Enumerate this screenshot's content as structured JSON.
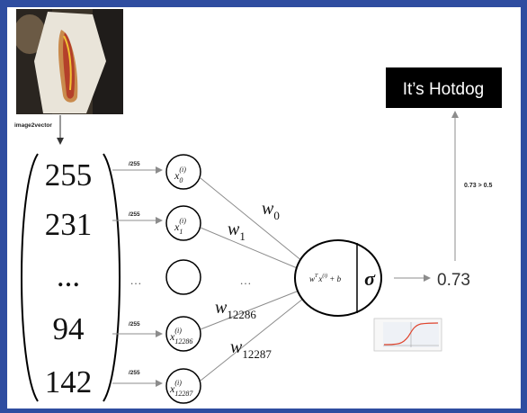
{
  "image_label": "image2vector",
  "pixel_values": [
    "255",
    "231",
    "...",
    "94",
    "142"
  ],
  "scale_labels": [
    "/255",
    "/255",
    "/255",
    "/255"
  ],
  "ellipsis": "…",
  "inputs": [
    {
      "base": "x",
      "sup": "(i)",
      "sub": "0"
    },
    {
      "base": "x",
      "sup": "(i)",
      "sub": "1"
    },
    {
      "base": "",
      "sup": "",
      "sub": ""
    },
    {
      "base": "x",
      "sup": "(i)",
      "sub": "12286"
    },
    {
      "base": "x",
      "sup": "(i)",
      "sub": "12287"
    }
  ],
  "weights": [
    {
      "base": "w",
      "sub": "0"
    },
    {
      "base": "w",
      "sub": "1"
    },
    {
      "base": "w",
      "sub": "12286"
    },
    {
      "base": "w",
      "sub": "12287"
    }
  ],
  "neuron": {
    "w": "w",
    "T": "T",
    "x": "x",
    "i": "(i)",
    "plus_b": " + b",
    "sigma": "σ"
  },
  "output_value": "0.73",
  "threshold_label": "0.73 > 0.5",
  "result_label": "It’s Hotdog",
  "colors": {
    "frame": "#2f4da0",
    "arrow": "#8c8c8c",
    "result_box": "#000000",
    "sigmoid_curve": "#e0452e"
  }
}
